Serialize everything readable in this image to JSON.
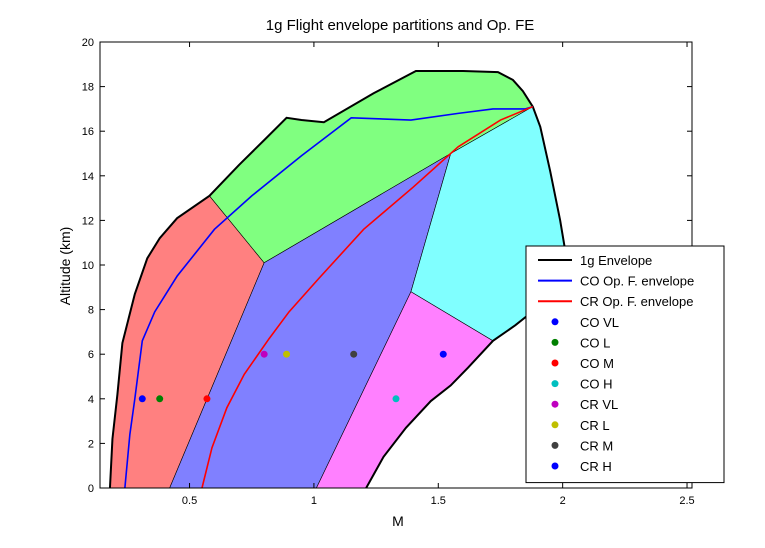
{
  "chart_data": {
    "type": "area",
    "title": "1g Flight envelope partitions and Op. FE",
    "xlabel": "M",
    "ylabel": "Altitude (km)",
    "xlim": [
      0.14,
      2.52
    ],
    "ylim": [
      0,
      20
    ],
    "xticks": [
      0.5,
      1,
      1.5,
      2,
      2.5
    ],
    "yticks": [
      0,
      2,
      4,
      6,
      8,
      10,
      12,
      14,
      16,
      18,
      20
    ],
    "xtick_labels": [
      "0.5",
      "1",
      "1.5",
      "2",
      "2.5"
    ],
    "ytick_labels": [
      "0",
      "2",
      "4",
      "6",
      "8",
      "10",
      "12",
      "14",
      "16",
      "18",
      "20"
    ],
    "grid": false,
    "legend_position": "lower-right",
    "regions": [
      {
        "color": "#ff8080",
        "points": [
          [
            0.18,
            0
          ],
          [
            0.19,
            2.2
          ],
          [
            0.21,
            4.2
          ],
          [
            0.23,
            6.5
          ],
          [
            0.28,
            8.7
          ],
          [
            0.33,
            10.3
          ],
          [
            0.38,
            11.2
          ],
          [
            0.45,
            12.1
          ],
          [
            0.58,
            13.1
          ],
          [
            0.8,
            10.1
          ],
          [
            0.42,
            0
          ]
        ]
      },
      {
        "color": "#80ff80",
        "points": [
          [
            0.58,
            13.1
          ],
          [
            0.7,
            14.5
          ],
          [
            0.8,
            15.6
          ],
          [
            0.89,
            16.6
          ],
          [
            0.95,
            16.5
          ],
          [
            1.04,
            16.4
          ],
          [
            1.24,
            17.7
          ],
          [
            1.41,
            18.7
          ],
          [
            1.6,
            18.7
          ],
          [
            1.74,
            18.65
          ],
          [
            1.8,
            18.3
          ],
          [
            1.84,
            17.8
          ],
          [
            1.88,
            17.1
          ],
          [
            1.55,
            15.0
          ],
          [
            0.8,
            10.1
          ]
        ]
      },
      {
        "color": "#8080ff",
        "points": [
          [
            0.42,
            0
          ],
          [
            0.8,
            10.1
          ],
          [
            1.55,
            15.0
          ],
          [
            1.39,
            8.8
          ],
          [
            1.01,
            0
          ]
        ]
      },
      {
        "color": "#80ffff",
        "points": [
          [
            1.55,
            15.0
          ],
          [
            1.88,
            17.1
          ],
          [
            1.91,
            16.2
          ],
          [
            1.95,
            14.2
          ],
          [
            1.99,
            12.0
          ],
          [
            2.02,
            10.0
          ],
          [
            2.0,
            9.1
          ],
          [
            1.9,
            8.1
          ],
          [
            1.81,
            7.3
          ],
          [
            1.72,
            6.6
          ],
          [
            1.39,
            8.8
          ]
        ]
      },
      {
        "color": "#ff80ff",
        "points": [
          [
            1.01,
            0
          ],
          [
            1.39,
            8.8
          ],
          [
            1.72,
            6.6
          ],
          [
            1.62,
            5.4
          ],
          [
            1.55,
            4.6
          ],
          [
            1.47,
            3.9
          ],
          [
            1.37,
            2.7
          ],
          [
            1.28,
            1.4
          ],
          [
            1.21,
            0
          ]
        ]
      }
    ],
    "series": [
      {
        "name": "1g Envelope",
        "color": "#000000",
        "x": [
          0.18,
          0.19,
          0.21,
          0.23,
          0.28,
          0.33,
          0.38,
          0.45,
          0.58,
          0.7,
          0.8,
          0.89,
          0.95,
          1.04,
          1.24,
          1.41,
          1.6,
          1.74,
          1.8,
          1.84,
          1.88,
          1.91,
          1.95,
          1.99,
          2.02,
          2.0,
          1.9,
          1.81,
          1.72,
          1.62,
          1.55,
          1.47,
          1.37,
          1.28,
          1.21
        ],
        "y": [
          0,
          2.2,
          4.2,
          6.5,
          8.7,
          10.3,
          11.2,
          12.1,
          13.1,
          14.5,
          15.6,
          16.6,
          16.5,
          16.4,
          17.7,
          18.7,
          18.7,
          18.65,
          18.3,
          17.8,
          17.1,
          16.2,
          14.2,
          12.0,
          10.0,
          9.1,
          8.1,
          7.3,
          6.6,
          5.4,
          4.6,
          3.9,
          2.7,
          1.4,
          0
        ]
      },
      {
        "name": "CO Op. F. envelope",
        "color": "#0000ff",
        "x": [
          0.24,
          0.26,
          0.28,
          0.31,
          0.36,
          0.45,
          0.6,
          0.75,
          0.95,
          1.15,
          1.39,
          1.58,
          1.72,
          1.8,
          1.85,
          1.88
        ],
        "y": [
          0,
          2.4,
          4.0,
          6.6,
          7.9,
          9.5,
          11.6,
          13.1,
          14.9,
          16.6,
          16.5,
          16.8,
          17.0,
          17.0,
          17.0,
          17.1
        ]
      },
      {
        "name": "CR Op. F. envelope",
        "color": "#ff0000",
        "x": [
          0.55,
          0.59,
          0.65,
          0.72,
          0.82,
          0.9,
          1.02,
          1.2,
          1.4,
          1.58,
          1.75,
          1.88
        ],
        "y": [
          0,
          1.8,
          3.6,
          5.1,
          6.7,
          7.9,
          9.4,
          11.6,
          13.5,
          15.3,
          16.5,
          17.1
        ]
      }
    ],
    "points": [
      {
        "name": "CO VL",
        "color": "#0000ff",
        "x": 0.31,
        "y": 4
      },
      {
        "name": "CO L",
        "color": "#008000",
        "x": 0.38,
        "y": 4
      },
      {
        "name": "CO M",
        "color": "#ff0000",
        "x": 0.57,
        "y": 4
      },
      {
        "name": "CO H",
        "color": "#00bfbf",
        "x": 1.33,
        "y": 4
      },
      {
        "name": "CR VL",
        "color": "#bf00bf",
        "x": 0.8,
        "y": 6
      },
      {
        "name": "CR L",
        "color": "#bfbf00",
        "x": 0.89,
        "y": 6
      },
      {
        "name": "CR M",
        "color": "#404040",
        "x": 1.16,
        "y": 6
      },
      {
        "name": "CR H",
        "color": "#0000ff",
        "x": 1.52,
        "y": 6
      }
    ]
  }
}
